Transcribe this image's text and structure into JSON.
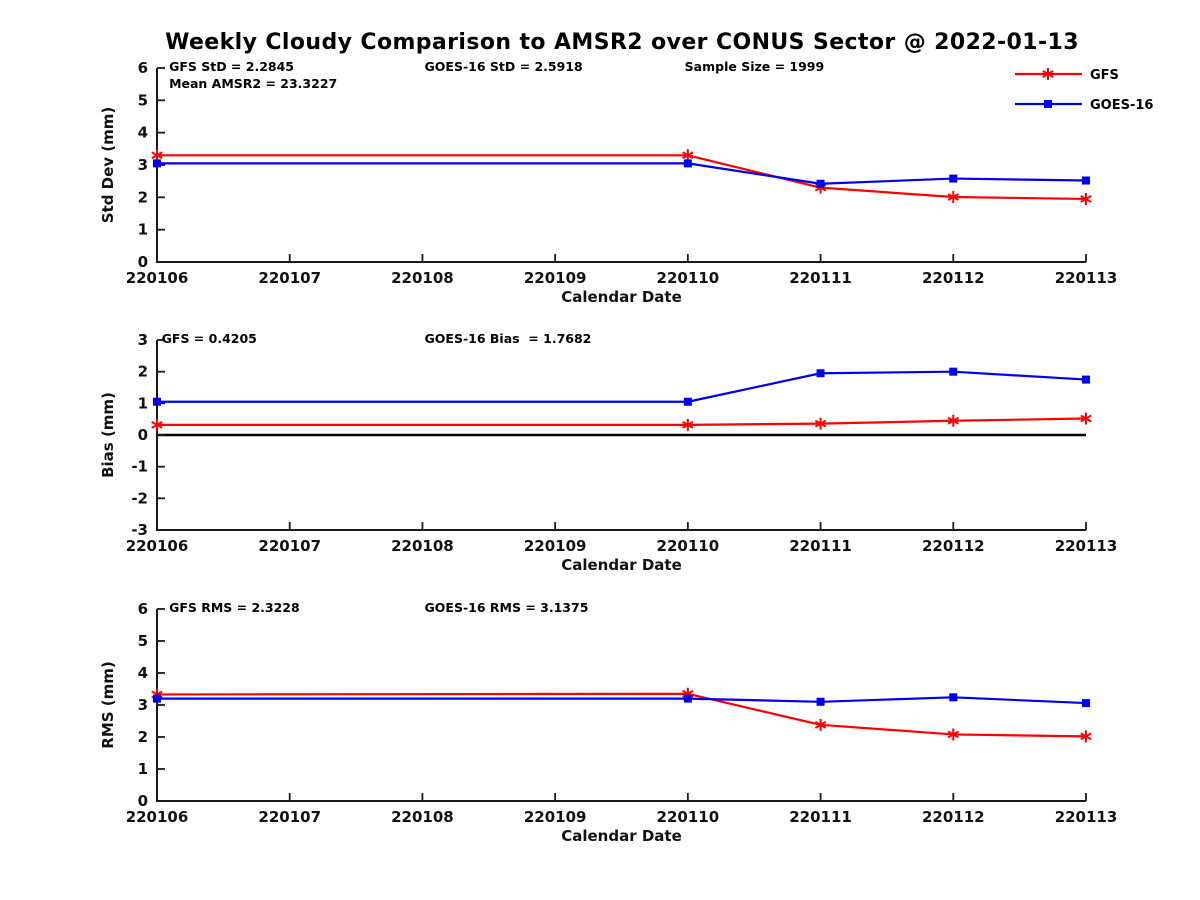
{
  "title": "Weekly Cloudy Comparison to AMSR2 over CONUS Sector @ 2022-01-13",
  "colors": {
    "gfs": "#ff0000",
    "goes16": "#0000ee",
    "axis": "#1a1a1a",
    "zero_line": "#000000",
    "background": "#ffffff"
  },
  "legend": {
    "position": "top-right",
    "items": [
      {
        "label": "GFS",
        "color": "#ff0000",
        "marker": "asterisk"
      },
      {
        "label": "GOES-16",
        "color": "#0000ee",
        "marker": "square"
      }
    ]
  },
  "chart_data": [
    {
      "type": "line",
      "name": "std-dev",
      "xlabel": "Calendar Date",
      "ylabel": "Std Dev (mm)",
      "ylim": [
        0,
        6
      ],
      "yticks": [
        0,
        1,
        2,
        3,
        4,
        5,
        6
      ],
      "categories": [
        "220106",
        "220107",
        "220108",
        "220109",
        "220110",
        "220111",
        "220112",
        "220113"
      ],
      "grid": false,
      "annotations": [
        {
          "text": "GFS StD = 2.2845",
          "fx": 0.013,
          "row": 0
        },
        {
          "text": "Mean AMSR2 = 23.3227",
          "fx": 0.013,
          "row": 1
        },
        {
          "text": "GOES-16 StD = 2.5918",
          "fx": 0.288,
          "row": 0
        },
        {
          "text": "Sample Size = 1999",
          "fx": 0.568,
          "row": 0
        }
      ],
      "series": [
        {
          "name": "GFS",
          "color": "#ff0000",
          "marker": "asterisk",
          "x": [
            "220106",
            "220110",
            "220111",
            "220112",
            "220113"
          ],
          "values": [
            3.3,
            3.3,
            2.3,
            2.01,
            1.95
          ]
        },
        {
          "name": "GOES-16",
          "color": "#0000ee",
          "marker": "square",
          "x": [
            "220106",
            "220110",
            "220111",
            "220112",
            "220113"
          ],
          "values": [
            3.05,
            3.05,
            2.42,
            2.58,
            2.52
          ]
        }
      ],
      "zero_line": false
    },
    {
      "type": "line",
      "name": "bias",
      "xlabel": "Calendar Date",
      "ylabel": "Bias (mm)",
      "ylim": [
        -3,
        3
      ],
      "yticks": [
        -3,
        -2,
        -1,
        0,
        1,
        2,
        3
      ],
      "categories": [
        "220106",
        "220107",
        "220108",
        "220109",
        "220110",
        "220111",
        "220112",
        "220113"
      ],
      "grid": false,
      "annotations": [
        {
          "text": "GFS = 0.4205",
          "fx": 0.005,
          "row": 0
        },
        {
          "text": "GOES-16 Bias  = 1.7682",
          "fx": 0.288,
          "row": 0
        }
      ],
      "series": [
        {
          "name": "GFS",
          "color": "#ff0000",
          "marker": "asterisk",
          "x": [
            "220106",
            "220110",
            "220111",
            "220112",
            "220113"
          ],
          "values": [
            0.32,
            0.32,
            0.36,
            0.45,
            0.52
          ]
        },
        {
          "name": "GOES-16",
          "color": "#0000ee",
          "marker": "square",
          "x": [
            "220106",
            "220110",
            "220111",
            "220112",
            "220113"
          ],
          "values": [
            1.05,
            1.05,
            1.95,
            2.0,
            1.75
          ]
        }
      ],
      "zero_line": true
    },
    {
      "type": "line",
      "name": "rms",
      "xlabel": "Calendar Date",
      "ylabel": "RMS (mm)",
      "ylim": [
        0,
        6
      ],
      "yticks": [
        0,
        1,
        2,
        3,
        4,
        5,
        6
      ],
      "categories": [
        "220106",
        "220107",
        "220108",
        "220109",
        "220110",
        "220111",
        "220112",
        "220113"
      ],
      "grid": false,
      "annotations": [
        {
          "text": "GFS RMS = 2.3228",
          "fx": 0.013,
          "row": 0
        },
        {
          "text": "GOES-16 RMS = 3.1375",
          "fx": 0.288,
          "row": 0
        }
      ],
      "series": [
        {
          "name": "GFS",
          "color": "#ff0000",
          "marker": "asterisk",
          "x": [
            "220106",
            "220110",
            "220111",
            "220112",
            "220113"
          ],
          "values": [
            3.33,
            3.35,
            2.38,
            2.08,
            2.02
          ]
        },
        {
          "name": "GOES-16",
          "color": "#0000ee",
          "marker": "square",
          "x": [
            "220106",
            "220110",
            "220111",
            "220112",
            "220113"
          ],
          "values": [
            3.2,
            3.2,
            3.1,
            3.24,
            3.06
          ]
        }
      ],
      "zero_line": false
    }
  ]
}
